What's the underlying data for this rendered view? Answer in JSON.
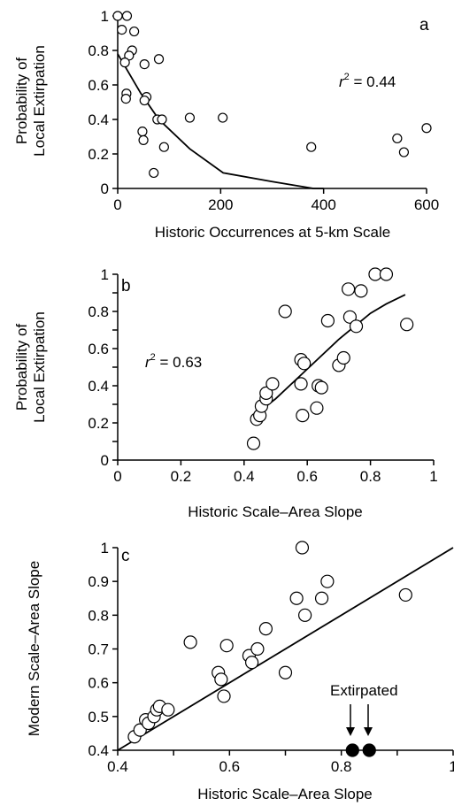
{
  "chart_data": [
    {
      "panel": "a",
      "type": "scatter",
      "xlabel": "Historic Occurrences at 5-km Scale",
      "ylabel_lines": [
        "Probability of",
        "Local Extirpation"
      ],
      "xlim": [
        0,
        600
      ],
      "ylim": [
        0,
        1
      ],
      "xticks": [
        0,
        200,
        400,
        600
      ],
      "yticks": [
        0,
        0.2,
        0.4,
        0.6,
        0.8,
        1
      ],
      "ytick_labels": [
        "0",
        "0.2",
        "0.4",
        "0.6",
        "0.8",
        "1"
      ],
      "annotation": {
        "r2_prefix": "r",
        "r2_sup": "2",
        "r2_value": " = 0.44"
      },
      "points": [
        {
          "x": 0,
          "y": 1.0
        },
        {
          "x": 18,
          "y": 1.0
        },
        {
          "x": 8,
          "y": 0.92
        },
        {
          "x": 32,
          "y": 0.91
        },
        {
          "x": 28,
          "y": 0.8
        },
        {
          "x": 22,
          "y": 0.77
        },
        {
          "x": 14,
          "y": 0.73
        },
        {
          "x": 80,
          "y": 0.75
        },
        {
          "x": 52,
          "y": 0.72
        },
        {
          "x": 17,
          "y": 0.55
        },
        {
          "x": 16,
          "y": 0.52
        },
        {
          "x": 56,
          "y": 0.53
        },
        {
          "x": 52,
          "y": 0.51
        },
        {
          "x": 77,
          "y": 0.4
        },
        {
          "x": 86,
          "y": 0.4
        },
        {
          "x": 140,
          "y": 0.41
        },
        {
          "x": 204,
          "y": 0.41
        },
        {
          "x": 48,
          "y": 0.33
        },
        {
          "x": 50,
          "y": 0.28
        },
        {
          "x": 90,
          "y": 0.24
        },
        {
          "x": 376,
          "y": 0.24
        },
        {
          "x": 70,
          "y": 0.09
        },
        {
          "x": 543,
          "y": 0.29
        },
        {
          "x": 556,
          "y": 0.21
        },
        {
          "x": 600,
          "y": 0.35
        }
      ],
      "fit_line": [
        {
          "x": 0,
          "y": 0.78
        },
        {
          "x": 45,
          "y": 0.55
        },
        {
          "x": 80,
          "y": 0.4
        },
        {
          "x": 140,
          "y": 0.23
        },
        {
          "x": 205,
          "y": 0.09
        },
        {
          "x": 300,
          "y": 0.04
        },
        {
          "x": 380,
          "y": 0.0
        },
        {
          "x": 400,
          "y": 0.0
        }
      ]
    },
    {
      "panel": "b",
      "type": "scatter",
      "xlabel": "Historic Scale–Area Slope",
      "ylabel_lines": [
        "Probability of",
        "Local Extirpation"
      ],
      "xlim": [
        0,
        1
      ],
      "ylim": [
        0,
        1
      ],
      "xticks": [
        0,
        0.2,
        0.4,
        0.6,
        0.8,
        1
      ],
      "xtick_labels": [
        "0",
        "0.2",
        "0.4",
        "0.6",
        "0.8",
        "1"
      ],
      "yticks": [
        0,
        0.1,
        0.2,
        0.3,
        0.4,
        0.5,
        0.6,
        0.7,
        0.8,
        0.9,
        1
      ],
      "ytick_labels": [
        "0",
        "",
        "0.2",
        "",
        "0.4",
        "",
        "0.6",
        "",
        "0.8",
        "",
        "1"
      ],
      "annotation": {
        "r2_prefix": "r",
        "r2_sup": "2",
        "r2_value": " = 0.63"
      },
      "points": [
        {
          "x": 0.43,
          "y": 0.09
        },
        {
          "x": 0.44,
          "y": 0.22
        },
        {
          "x": 0.45,
          "y": 0.24
        },
        {
          "x": 0.455,
          "y": 0.29
        },
        {
          "x": 0.47,
          "y": 0.33
        },
        {
          "x": 0.47,
          "y": 0.36
        },
        {
          "x": 0.49,
          "y": 0.41
        },
        {
          "x": 0.53,
          "y": 0.8
        },
        {
          "x": 0.58,
          "y": 0.54
        },
        {
          "x": 0.59,
          "y": 0.52
        },
        {
          "x": 0.58,
          "y": 0.41
        },
        {
          "x": 0.585,
          "y": 0.24
        },
        {
          "x": 0.63,
          "y": 0.28
        },
        {
          "x": 0.635,
          "y": 0.4
        },
        {
          "x": 0.645,
          "y": 0.39
        },
        {
          "x": 0.665,
          "y": 0.75
        },
        {
          "x": 0.7,
          "y": 0.51
        },
        {
          "x": 0.715,
          "y": 0.55
        },
        {
          "x": 0.73,
          "y": 0.92
        },
        {
          "x": 0.735,
          "y": 0.77
        },
        {
          "x": 0.755,
          "y": 0.72
        },
        {
          "x": 0.77,
          "y": 0.91
        },
        {
          "x": 0.815,
          "y": 1.0
        },
        {
          "x": 0.85,
          "y": 1.0
        },
        {
          "x": 0.915,
          "y": 0.73
        }
      ],
      "fit_line": [
        {
          "x": 0.44,
          "y": 0.25
        },
        {
          "x": 0.5,
          "y": 0.33
        },
        {
          "x": 0.6,
          "y": 0.49
        },
        {
          "x": 0.7,
          "y": 0.65
        },
        {
          "x": 0.8,
          "y": 0.79
        },
        {
          "x": 0.85,
          "y": 0.84
        },
        {
          "x": 0.91,
          "y": 0.89
        }
      ]
    },
    {
      "panel": "c",
      "type": "scatter",
      "xlabel": "Historic Scale–Area Slope",
      "ylabel_lines": [
        "Modern Scale–Area Slope"
      ],
      "xlim": [
        0.4,
        1
      ],
      "ylim": [
        0.4,
        1
      ],
      "xticks": [
        0.4,
        0.5,
        0.6,
        0.7,
        0.8,
        0.9,
        1
      ],
      "xtick_labels": [
        "0.4",
        "",
        "0.6",
        "",
        "0.8",
        "",
        "1"
      ],
      "yticks": [
        0.4,
        0.5,
        0.6,
        0.7,
        0.8,
        0.9,
        1
      ],
      "ytick_labels": [
        "0.4",
        "0.5",
        "0.6",
        "0.7",
        "0.8",
        "0.9",
        "1"
      ],
      "annotation_text": "Extirpated",
      "points": [
        {
          "x": 0.43,
          "y": 0.44
        },
        {
          "x": 0.44,
          "y": 0.46
        },
        {
          "x": 0.45,
          "y": 0.49
        },
        {
          "x": 0.455,
          "y": 0.48
        },
        {
          "x": 0.465,
          "y": 0.5
        },
        {
          "x": 0.47,
          "y": 0.52
        },
        {
          "x": 0.475,
          "y": 0.53
        },
        {
          "x": 0.49,
          "y": 0.52
        },
        {
          "x": 0.53,
          "y": 0.72
        },
        {
          "x": 0.58,
          "y": 0.63
        },
        {
          "x": 0.585,
          "y": 0.61
        },
        {
          "x": 0.59,
          "y": 0.56
        },
        {
          "x": 0.595,
          "y": 0.71
        },
        {
          "x": 0.635,
          "y": 0.68
        },
        {
          "x": 0.64,
          "y": 0.66
        },
        {
          "x": 0.65,
          "y": 0.7
        },
        {
          "x": 0.665,
          "y": 0.76
        },
        {
          "x": 0.7,
          "y": 0.63
        },
        {
          "x": 0.72,
          "y": 0.85
        },
        {
          "x": 0.73,
          "y": 1.0
        },
        {
          "x": 0.735,
          "y": 0.8
        },
        {
          "x": 0.765,
          "y": 0.85
        },
        {
          "x": 0.775,
          "y": 0.9
        },
        {
          "x": 0.915,
          "y": 0.86
        }
      ],
      "filled_points": [
        {
          "x": 0.82,
          "y": 0.4
        },
        {
          "x": 0.85,
          "y": 0.4
        }
      ],
      "fit_line": [
        {
          "x": 0.4,
          "y": 0.4
        },
        {
          "x": 1.0,
          "y": 1.0
        }
      ]
    }
  ]
}
